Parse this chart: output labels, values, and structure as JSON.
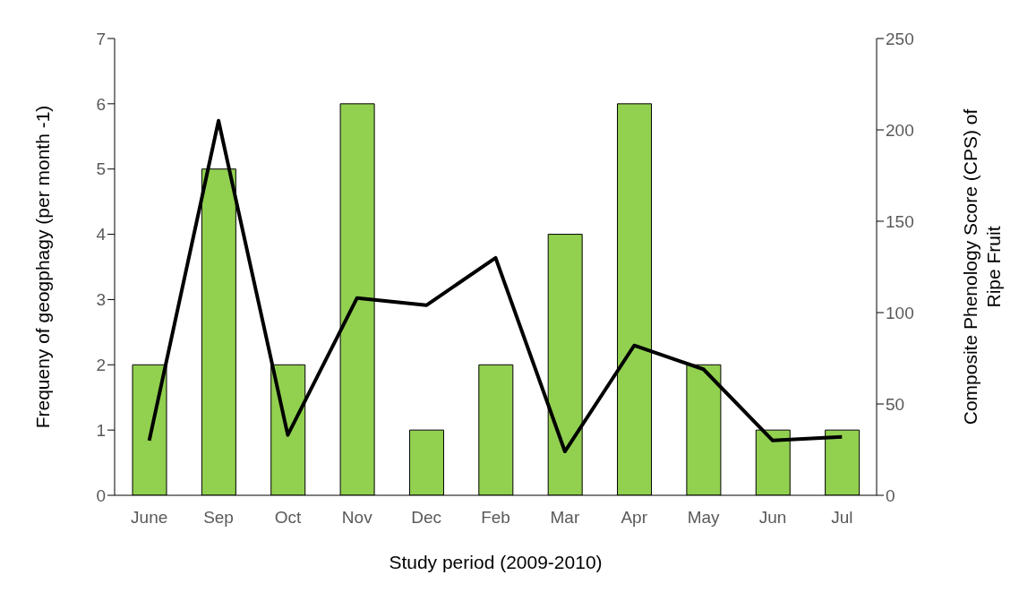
{
  "chart_data": {
    "type": "bar",
    "xlabel": "Study period (2009-2010)",
    "ylabel": "Frequeny of geogphagy (per month -1)",
    "y2label": "Composite Phenology Score (CPS) of Ripe Fruit",
    "categories": [
      "June",
      "Sep",
      "Oct",
      "Nov",
      "Dec",
      "Feb",
      "Mar",
      "Apr",
      "May",
      "Jun",
      "Jul"
    ],
    "series": [
      {
        "color": "#92d050",
        "values": [
          2,
          5,
          2,
          6,
          1,
          2,
          4,
          6,
          2,
          1,
          1
        ]
      },
      {
        "type": "line",
        "axis": "y2",
        "color": "#000000",
        "values": [
          30,
          205,
          33,
          108,
          104,
          130,
          24,
          82,
          69,
          30,
          32
        ]
      }
    ],
    "ylim": [
      0,
      7
    ],
    "yticks": [
      0,
      1,
      2,
      3,
      4,
      5,
      6,
      7
    ],
    "y2lim": [
      0,
      250
    ],
    "y2ticks": [
      0,
      50,
      100,
      150,
      200,
      250
    ],
    "grid": false,
    "legend": false,
    "marker": "none",
    "line_style": "solid"
  }
}
